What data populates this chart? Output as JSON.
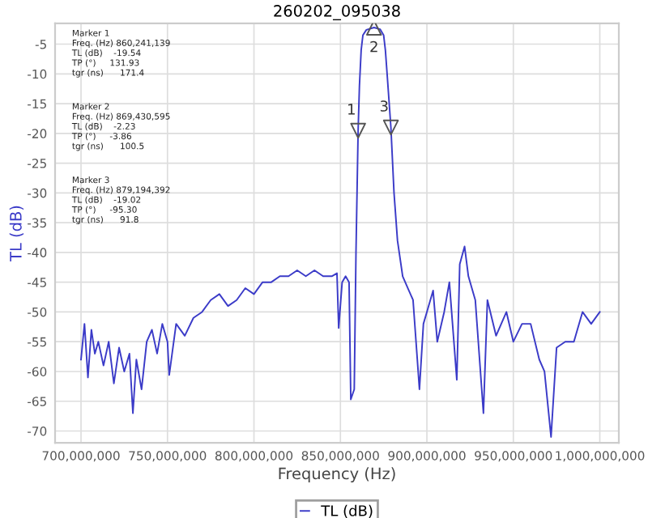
{
  "chart_data": {
    "type": "line",
    "title": "260202_095038",
    "xlabel": "Frequency (Hz)",
    "ylabel": "TL (dB)",
    "x": [
      700000000.0,
      702000000.0,
      704000000.0,
      706000000.0,
      708000000.0,
      710000000.0,
      713000000.0,
      716000000.0,
      719000000.0,
      722000000.0,
      725000000.0,
      728000000.0,
      730000000.0,
      732000000.0,
      735000000.0,
      738000000.0,
      741000000.0,
      744000000.0,
      747000000.0,
      750000000.0,
      751000000.0,
      755000000.0,
      760000000.0,
      765000000.0,
      770000000.0,
      775000000.0,
      780000000.0,
      785000000.0,
      790000000.0,
      795000000.0,
      800000000.0,
      805000000.0,
      810000000.0,
      815000000.0,
      820000000.0,
      825000000.0,
      830000000.0,
      835000000.0,
      840000000.0,
      845000000.0,
      848000000.0,
      849000000.0,
      851000000.0,
      853000000.0,
      855000000.0,
      856000000.0,
      858000000.0,
      859000000.0,
      860241139,
      861000000.0,
      862000000.0,
      863000000.0,
      865000000.0,
      869430595,
      873000000.0,
      875000000.0,
      876000000.0,
      877000000.0,
      879194392,
      881000000.0,
      883000000.0,
      886000000.0,
      889000000.0,
      892000000.0,
      895700000.0,
      898000000.0,
      900000000.0,
      903600000.0,
      906000000.0,
      910000000.0,
      913000000.0,
      917300000.0,
      919000000.0,
      921800000.0,
      924000000.0,
      928000000.0,
      932700000.0,
      935000000.0,
      940000000.0,
      946000000.0,
      950000000.0,
      955000000.0,
      960000000.0,
      965000000.0,
      968000000.0,
      971800000.0,
      975000000.0,
      980000000.0,
      985000000.0,
      990000000.0,
      995000000.0,
      1000000000.0
    ],
    "series": [
      {
        "name": "TL (dB)",
        "color": "#3b3bc8",
        "values": [
          -58,
          -52,
          -61,
          -53,
          -57,
          -55,
          -59,
          -55,
          -62,
          -56,
          -60,
          -57,
          -67,
          -58,
          -63,
          -55,
          -53,
          -57,
          -52,
          -55,
          -60.6,
          -52,
          -54,
          -51,
          -50,
          -48,
          -47,
          -49,
          -48,
          -46,
          -47,
          -45,
          -45,
          -44,
          -44,
          -43,
          -44,
          -43,
          -44,
          -44,
          -43.5,
          -52.7,
          -45,
          -44,
          -45,
          -64.7,
          -63,
          -40,
          -19.5,
          -12,
          -6,
          -3.5,
          -2.6,
          -2.2,
          -2.5,
          -3.5,
          -6,
          -10,
          -19.0,
          -30,
          -38,
          -44,
          -46,
          -48,
          -63,
          -52,
          -50,
          -46.4,
          -55,
          -50,
          -45,
          -61.4,
          -42,
          -39,
          -44,
          -48,
          -67,
          -48,
          -54,
          -50,
          -55,
          -52,
          -52,
          -58,
          -60,
          -71,
          -56,
          -55,
          -55,
          -50,
          -52,
          -50
        ]
      }
    ],
    "xlim": [
      685000000.0,
      1011000000.0
    ],
    "ylim": [
      -72,
      -1.5
    ],
    "xticks": [
      {
        "value": 700000000.0,
        "label": "700,000,000"
      },
      {
        "value": 750000000.0,
        "label": "750,000,000"
      },
      {
        "value": 800000000.0,
        "label": "800,000,000"
      },
      {
        "value": 850000000.0,
        "label": "850,000,000"
      },
      {
        "value": 900000000.0,
        "label": "900,000,000"
      },
      {
        "value": 950000000.0,
        "label": "950,000,000"
      },
      {
        "value": 1000000000.0,
        "label": "1,000,000,000"
      }
    ],
    "yticks": [
      -5,
      -10,
      -15,
      -20,
      -25,
      -30,
      -35,
      -40,
      -45,
      -50,
      -55,
      -60,
      -65,
      -70
    ],
    "grid": true,
    "legend": "bottom",
    "marker": "none",
    "line_style": "solid",
    "annotations": [
      {
        "text": "1",
        "x": 860241139,
        "y": -19.54
      },
      {
        "text": "2",
        "x": 869430595,
        "y": -2.23
      },
      {
        "text": "3",
        "x": 879194392,
        "y": -19.02
      },
      "Marker 1\nFreq. (Hz) 860,241,139\nTL (dB)    -19.54\nTP (°)     131.93\ntgr (ns)      171.4",
      "Marker 2\nFreq. (Hz) 869,430,595\nTL (dB)    -2.23\nTP (°)     -3.86\ntgr (ns)      100.5",
      "Marker 3\nFreq. (Hz) 879,194,392\nTL (dB)    -19.02\nTP (°)     -95.30\ntgr (ns)      91.8"
    ]
  }
}
